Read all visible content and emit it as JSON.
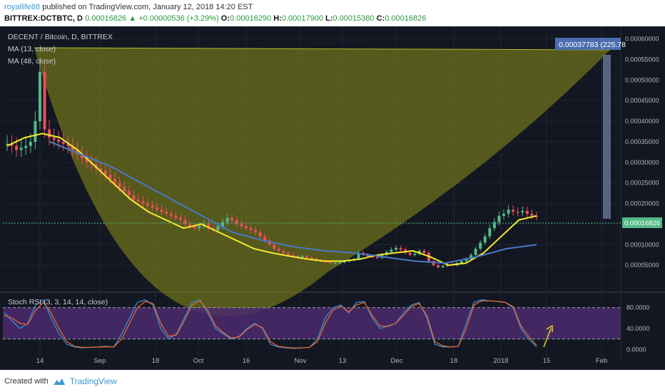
{
  "header": {
    "author": "royallife88",
    "published": "published on TradingView.com, January 12, 2018 14:20 EST",
    "symbol": "BITTREX:DCTBTC, D",
    "last": "0.00016826",
    "change": "▲ +0.00000536 (+3.29%)",
    "o_label": "O:",
    "o_value": "0.00016290",
    "h_label": "H:",
    "h_value": "0.00017900",
    "l_label": "L:",
    "l_value": "0.00015380",
    "c_label": "C:",
    "c_value": "0.00016826"
  },
  "legend": {
    "title": "DECENT / Bitcoin, D, BITTREX",
    "ma13": "MA (13, close)",
    "ma48": "MA (48, close)",
    "stoch": "Stoch RSI (3, 3, 14, 14, close)"
  },
  "measure_label": "0.00037783 (225.78",
  "price_tag": "0.00016826",
  "footer": {
    "created_with": "Created with",
    "brand": "TradingView"
  },
  "colors": {
    "background": "#131722",
    "bull": "#53b987",
    "bear": "#eb4d5c",
    "ma13": "#f5ea2b",
    "ma48": "#4a78c8",
    "cup_fill": "#8c8f16",
    "rsi_band": "#4b2a6e",
    "rsi_k": "#2d8fd8",
    "rsi_d": "#e8632a",
    "arrow": "#f5d21b"
  },
  "chart_data": [
    {
      "type": "candlestick",
      "title": "DECENT / Bitcoin, D, BITTREX",
      "x_ticks": [
        "14",
        "Sep",
        "18",
        "Oct",
        "16",
        "Nov",
        "13",
        "Dec",
        "18",
        "2018",
        "15",
        "Feb"
      ],
      "y_ticks": [
        "0.00060000",
        "0.00055000",
        "0.00050000",
        "0.00045000",
        "0.00040000",
        "0.00035000",
        "0.00030000",
        "0.00025000",
        "0.00020000",
        "0.00015000",
        "0.00010000",
        "0.00005000"
      ],
      "ylim": [
        0.0,
        0.00062
      ],
      "close_approx": [
        0.000345,
        0.00034,
        0.00033,
        0.000335,
        0.00034,
        0.00035,
        0.0004,
        0.00052,
        0.00038,
        0.00036,
        0.000355,
        0.00035,
        0.000345,
        0.00034,
        0.00033,
        0.00032,
        0.00031,
        0.0003,
        0.000295,
        0.000285,
        0.00028,
        0.00027,
        0.00026,
        0.00025,
        0.00024,
        0.00023,
        0.00022,
        0.00021,
        0.000205,
        0.0002,
        0.000195,
        0.00019,
        0.000185,
        0.00018,
        0.000175,
        0.00017,
        0.000165,
        0.00016,
        0.00015,
        0.000145,
        0.00014,
        0.000145,
        0.00015,
        0.00014,
        0.000135,
        0.000145,
        0.000155,
        0.000165,
        0.00016,
        0.00015,
        0.000145,
        0.00014,
        0.000135,
        0.00013,
        0.00012,
        0.00011,
        0.0001,
        9e-05,
        8.5e-05,
        8e-05,
        7.5e-05,
        7.2e-05,
        7e-05,
        7.2e-05,
        6.8e-05,
        6.5e-05,
        6.2e-05,
        6e-05,
        5.8e-05,
        5.5e-05,
        5.5e-05,
        5.7e-05,
        6e-05,
        6.2e-05,
        6.5e-05,
        8e-05,
        7.5e-05,
        7.2e-05,
        7e-05,
        6.8e-05,
        7.5e-05,
        8.2e-05,
        8.8e-05,
        9.2e-05,
        8.8e-05,
        8e-05,
        7.5e-05,
        7.8e-05,
        8.5e-05,
        8e-05,
        6e-05,
        5e-05,
        4.5e-05,
        4.8e-05,
        5.2e-05,
        5e-05,
        5.5e-05,
        6e-05,
        6.5e-05,
        7.5e-05,
        9e-05,
        0.000105,
        0.00012,
        0.00014,
        0.000155,
        0.00017,
        0.000175,
        0.000185,
        0.00018,
        0.000178,
        0.000182,
        0.000175,
        0.00017,
        0.000168
      ],
      "ma13_approx": [
        0.00034,
        0.00036,
        0.00037,
        0.00036,
        0.00033,
        0.00029,
        0.00025,
        0.00021,
        0.00018,
        0.00016,
        0.00014,
        0.00015,
        0.00013,
        0.00011,
        9e-05,
        8e-05,
        7.2e-05,
        6.5e-05,
        6e-05,
        6e-05,
        6.5e-05,
        7.5e-05,
        8e-05,
        8.5e-05,
        7e-05,
        5e-05,
        5.5e-05,
        8e-05,
        0.00012,
        0.00016,
        0.00017
      ],
      "ma48_approx": [
        0.00035,
        0.00032,
        0.00029,
        0.00025,
        0.00021,
        0.00017,
        0.00013,
        0.00011,
        9.5e-05,
        8.5e-05,
        8e-05,
        7e-05,
        6e-05,
        5.5e-05,
        7e-05,
        9e-05,
        0.0001
      ]
    },
    {
      "type": "line",
      "title": "Stoch RSI (3, 3, 14, 14, close)",
      "y_ticks": [
        "80.0000",
        "40.0000",
        "0.0000"
      ],
      "ylim": [
        -5,
        100
      ],
      "series": [
        {
          "name": "K",
          "values": [
            70,
            55,
            40,
            50,
            85,
            95,
            60,
            30,
            10,
            5,
            3,
            4,
            5,
            6,
            5,
            30,
            60,
            90,
            95,
            85,
            40,
            20,
            30,
            60,
            90,
            95,
            70,
            40,
            30,
            20,
            25,
            40,
            50,
            40,
            10,
            5,
            3,
            2,
            3,
            4,
            20,
            60,
            80,
            85,
            70,
            90,
            92,
            60,
            40,
            45,
            50,
            70,
            85,
            90,
            60,
            10,
            5,
            5,
            6,
            50,
            90,
            95,
            93,
            92,
            90,
            80,
            40,
            20,
            5
          ]
        },
        {
          "name": "D",
          "values": [
            65,
            60,
            50,
            48,
            75,
            90,
            70,
            40,
            15,
            6,
            4,
            4,
            5,
            5,
            5,
            20,
            50,
            80,
            92,
            88,
            50,
            25,
            28,
            55,
            85,
            93,
            75,
            45,
            32,
            22,
            24,
            38,
            48,
            42,
            15,
            6,
            4,
            3,
            3,
            4,
            15,
            50,
            75,
            83,
            72,
            85,
            90,
            65,
            45,
            44,
            50,
            65,
            82,
            88,
            65,
            15,
            7,
            5,
            6,
            40,
            85,
            93,
            93,
            92,
            90,
            82,
            45,
            25,
            8
          ]
        }
      ]
    }
  ]
}
